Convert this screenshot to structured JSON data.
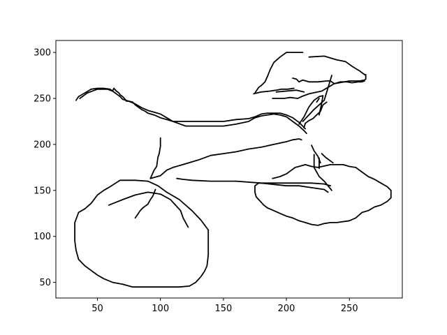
{
  "chart_data": {
    "type": "line",
    "title": "",
    "xlabel": "",
    "ylabel": "",
    "xlim": [
      17,
      292
    ],
    "ylim": [
      33,
      313
    ],
    "x_ticks": [
      50,
      100,
      150,
      200,
      250
    ],
    "y_ticks": [
      50,
      100,
      150,
      200,
      250,
      300
    ],
    "grid": false,
    "line_color": "#000000",
    "series": [
      {
        "x": [
          33,
          35,
          40,
          45,
          50,
          55,
          60,
          62,
          63,
          65,
          67,
          68,
          70,
          72,
          73,
          75,
          78,
          80,
          82,
          85,
          88,
          90,
          95,
          100,
          105,
          110,
          120,
          130,
          140,
          150,
          160,
          170,
          175,
          180,
          185,
          190,
          195,
          200,
          205,
          210,
          215
        ],
        "y": [
          248,
          252,
          256,
          260,
          261,
          261,
          260,
          258,
          261,
          258,
          256,
          254,
          252,
          249,
          247,
          247,
          246,
          243,
          241,
          238,
          236,
          234,
          232,
          229,
          227,
          225,
          225,
          225,
          225,
          225,
          227,
          228,
          230,
          233,
          234,
          234,
          234,
          232,
          229,
          224,
          217
        ]
      },
      {
        "x": [
          36,
          42,
          50,
          58,
          62,
          64,
          66,
          68,
          70,
          75,
          80,
          85,
          90,
          95,
          100,
          105,
          110,
          120,
          130,
          140,
          150,
          160,
          170,
          175,
          180,
          185,
          190,
          195,
          200,
          205,
          210,
          214,
          216
        ],
        "y": [
          250,
          256,
          260,
          260,
          258,
          256,
          254,
          252,
          249,
          247,
          244,
          240,
          237,
          235,
          233,
          229,
          225,
          220,
          220,
          220,
          220,
          222,
          225,
          229,
          231,
          232,
          233,
          232,
          230,
          225,
          220,
          215,
          212
        ]
      },
      {
        "x": [
          100,
          100,
          99,
          98,
          97,
          95,
          92
        ],
        "y": [
          207,
          198,
          190,
          186,
          176,
          172,
          163
        ]
      },
      {
        "x": [
          92,
          100,
          105,
          110,
          120,
          130,
          140,
          150,
          160,
          170,
          180,
          190,
          200,
          205,
          210,
          212
        ],
        "y": [
          163,
          166,
          172,
          175,
          179,
          183,
          188,
          190,
          192,
          195,
          197,
          200,
          203,
          205,
          206,
          205
        ]
      },
      {
        "x": [
          113,
          118,
          125,
          140,
          160,
          180,
          200,
          210,
          220,
          230,
          233
        ],
        "y": [
          163,
          162,
          161,
          160,
          160,
          158,
          155,
          155,
          153,
          151,
          148
        ]
      },
      {
        "x": [
          80,
          82,
          84,
          86,
          88,
          90,
          92,
          94,
          96
        ],
        "y": [
          120,
          124,
          128,
          131,
          133,
          135,
          140,
          144,
          151
        ]
      },
      {
        "x": [
          59,
          70,
          80,
          90,
          100,
          108,
          112,
          116,
          118,
          120,
          122
        ],
        "y": [
          134,
          140,
          145,
          148,
          146,
          140,
          134,
          128,
          120,
          115,
          110
        ]
      },
      {
        "x": [
          68,
          80,
          90,
          98,
          105,
          115,
          125,
          132,
          138,
          138,
          137,
          135,
          132,
          128,
          123,
          115,
          100,
          90,
          78,
          70,
          62,
          55,
          50,
          45,
          40,
          35,
          33,
          32,
          32,
          35,
          40,
          45,
          50,
          55,
          60,
          68
        ],
        "y": [
          161,
          161,
          160,
          155,
          148,
          140,
          128,
          118,
          107,
          80,
          68,
          62,
          56,
          50,
          46,
          45,
          45,
          45,
          45,
          48,
          50,
          54,
          58,
          63,
          68,
          75,
          85,
          95,
          115,
          126,
          130,
          136,
          145,
          150,
          154,
          161
        ]
      },
      {
        "x": [
          189,
          195,
          200,
          204,
          207,
          210,
          215,
          220,
          225,
          235,
          240,
          245,
          250,
          255,
          260,
          265,
          270,
          275,
          280,
          283,
          283,
          280,
          275,
          270,
          265,
          260,
          255,
          250,
          240,
          235,
          230,
          225,
          220,
          215,
          210,
          205,
          200,
          195,
          190,
          185,
          182,
          180,
          178,
          176,
          175,
          175,
          178,
          182,
          190,
          200,
          210,
          220,
          230,
          235
        ],
        "y": [
          163,
          165,
          168,
          172,
          175,
          176,
          178,
          176,
          175,
          178,
          178,
          178,
          176,
          175,
          170,
          165,
          162,
          158,
          154,
          150,
          142,
          138,
          134,
          132,
          128,
          126,
          120,
          117,
          115,
          115,
          114,
          112,
          113,
          115,
          117,
          120,
          122,
          125,
          128,
          131,
          134,
          137,
          140,
          143,
          148,
          155,
          158,
          158,
          158,
          158,
          158,
          158,
          157,
          155
        ]
      },
      {
        "x": [
          220,
          222,
          225,
          227
        ],
        "y": [
          199,
          193,
          187,
          180
        ]
      },
      {
        "x": [
          222,
          222,
          224,
          226,
          230,
          233,
          236
        ],
        "y": [
          189,
          175,
          170,
          165,
          160,
          155,
          150
        ]
      },
      {
        "x": [
          228,
          231,
          237
        ],
        "y": [
          190,
          186,
          180
        ]
      },
      {
        "x": [
          226,
          226
        ],
        "y": [
          185,
          174
        ]
      },
      {
        "x": [
          205,
          208,
          210,
          213,
          218,
          225,
          232,
          235,
          238,
          242,
          246,
          250,
          254,
          258,
          262,
          263,
          263
        ],
        "y": [
          272,
          271,
          268,
          270,
          268,
          268,
          269,
          269,
          266,
          267,
          268,
          269,
          269,
          269,
          270,
          271,
          276
        ]
      },
      {
        "x": [
          175,
          178,
          180,
          183,
          185,
          187,
          190,
          195,
          200,
          204,
          205,
          208,
          210,
          213
        ],
        "y": [
          256,
          262,
          264,
          268,
          274,
          281,
          289,
          295,
          300,
          300,
          300,
          300,
          300,
          300
        ]
      },
      {
        "x": [
          218,
          230,
          240,
          247,
          252,
          258,
          263
        ],
        "y": [
          295,
          296,
          292,
          290,
          285,
          280,
          275
        ]
      },
      {
        "x": [
          192,
          200,
          208,
          214
        ],
        "y": [
          257,
          258,
          259,
          257
        ]
      },
      {
        "x": [
          174,
          180,
          187,
          192,
          196,
          201,
          206
        ],
        "y": [
          255,
          257,
          258,
          259,
          260,
          260,
          261
        ]
      },
      {
        "x": [
          189,
          198,
          203,
          209,
          212,
          218,
          228,
          233,
          238,
          243,
          248,
          252,
          257,
          260,
          262
        ],
        "y": [
          250,
          250,
          251,
          250,
          252,
          255,
          258,
          262,
          266,
          268,
          268,
          267,
          268,
          268,
          269
        ]
      },
      {
        "x": [
          213,
          222,
          230,
          236
        ],
        "y": [
          225,
          238,
          248,
          275
        ]
      },
      {
        "x": [
          210,
          214,
          218,
          222,
          226,
          229,
          228,
          226
        ],
        "y": [
          222,
          230,
          241,
          248,
          252,
          253,
          245,
          232
        ]
      },
      {
        "x": [
          214,
          215,
          218,
          221,
          224,
          227,
          229,
          232
        ],
        "y": [
          218,
          223,
          226,
          228,
          232,
          236,
          243,
          246
        ]
      },
      {
        "x": [
          224,
          226
        ],
        "y": [
          246,
          250
        ]
      }
    ]
  }
}
